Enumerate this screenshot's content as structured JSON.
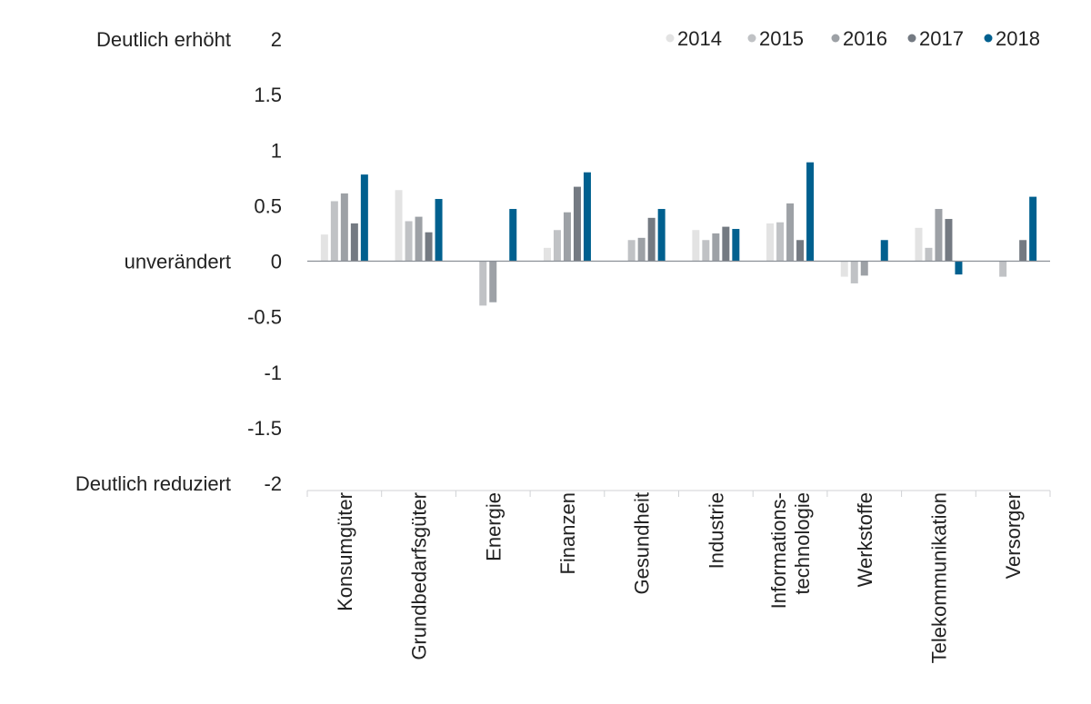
{
  "chart_data": {
    "type": "bar",
    "categories": [
      "Konsumgüter",
      "Grundbedarfsgüter",
      "Energie",
      "Finanzen",
      "Gesundheit",
      "Industrie",
      "Informations-\ntechnologie",
      "Werkstoffe",
      "Telekommunikation",
      "Versorger"
    ],
    "series": [
      {
        "name": "2014",
        "color": "#e3e3e3",
        "values": [
          0.24,
          0.64,
          0,
          0.12,
          0,
          0.28,
          0.34,
          -0.14,
          0.3,
          0
        ]
      },
      {
        "name": "2015",
        "color": "#c0c2c5",
        "values": [
          0.54,
          0.36,
          -0.4,
          0.28,
          0.19,
          0.19,
          0.35,
          -0.2,
          0.12,
          -0.14
        ]
      },
      {
        "name": "2016",
        "color": "#9da1a6",
        "values": [
          0.61,
          0.4,
          -0.37,
          0.44,
          0.21,
          0.25,
          0.52,
          -0.13,
          0.47,
          0
        ]
      },
      {
        "name": "2017",
        "color": "#747a82",
        "values": [
          0.34,
          0.26,
          0,
          0.67,
          0.39,
          0.31,
          0.19,
          0,
          0.38,
          0.19
        ]
      },
      {
        "name": "2018",
        "color": "#00608f",
        "values": [
          0.78,
          0.56,
          0.47,
          0.8,
          0.47,
          0.29,
          0.89,
          0.19,
          -0.12,
          0.58
        ]
      }
    ],
    "yticks": [
      "2",
      "1.5",
      "1",
      "0.5",
      "0",
      "-0.5",
      "-1",
      "-1.5",
      "-2"
    ],
    "ylim": [
      -2,
      2
    ],
    "side_labels": {
      "top": "Deutlich erhöht",
      "middle": "unverändert",
      "bottom": "Deutlich reduziert"
    },
    "legend_position": "top-right",
    "grid": false
  }
}
